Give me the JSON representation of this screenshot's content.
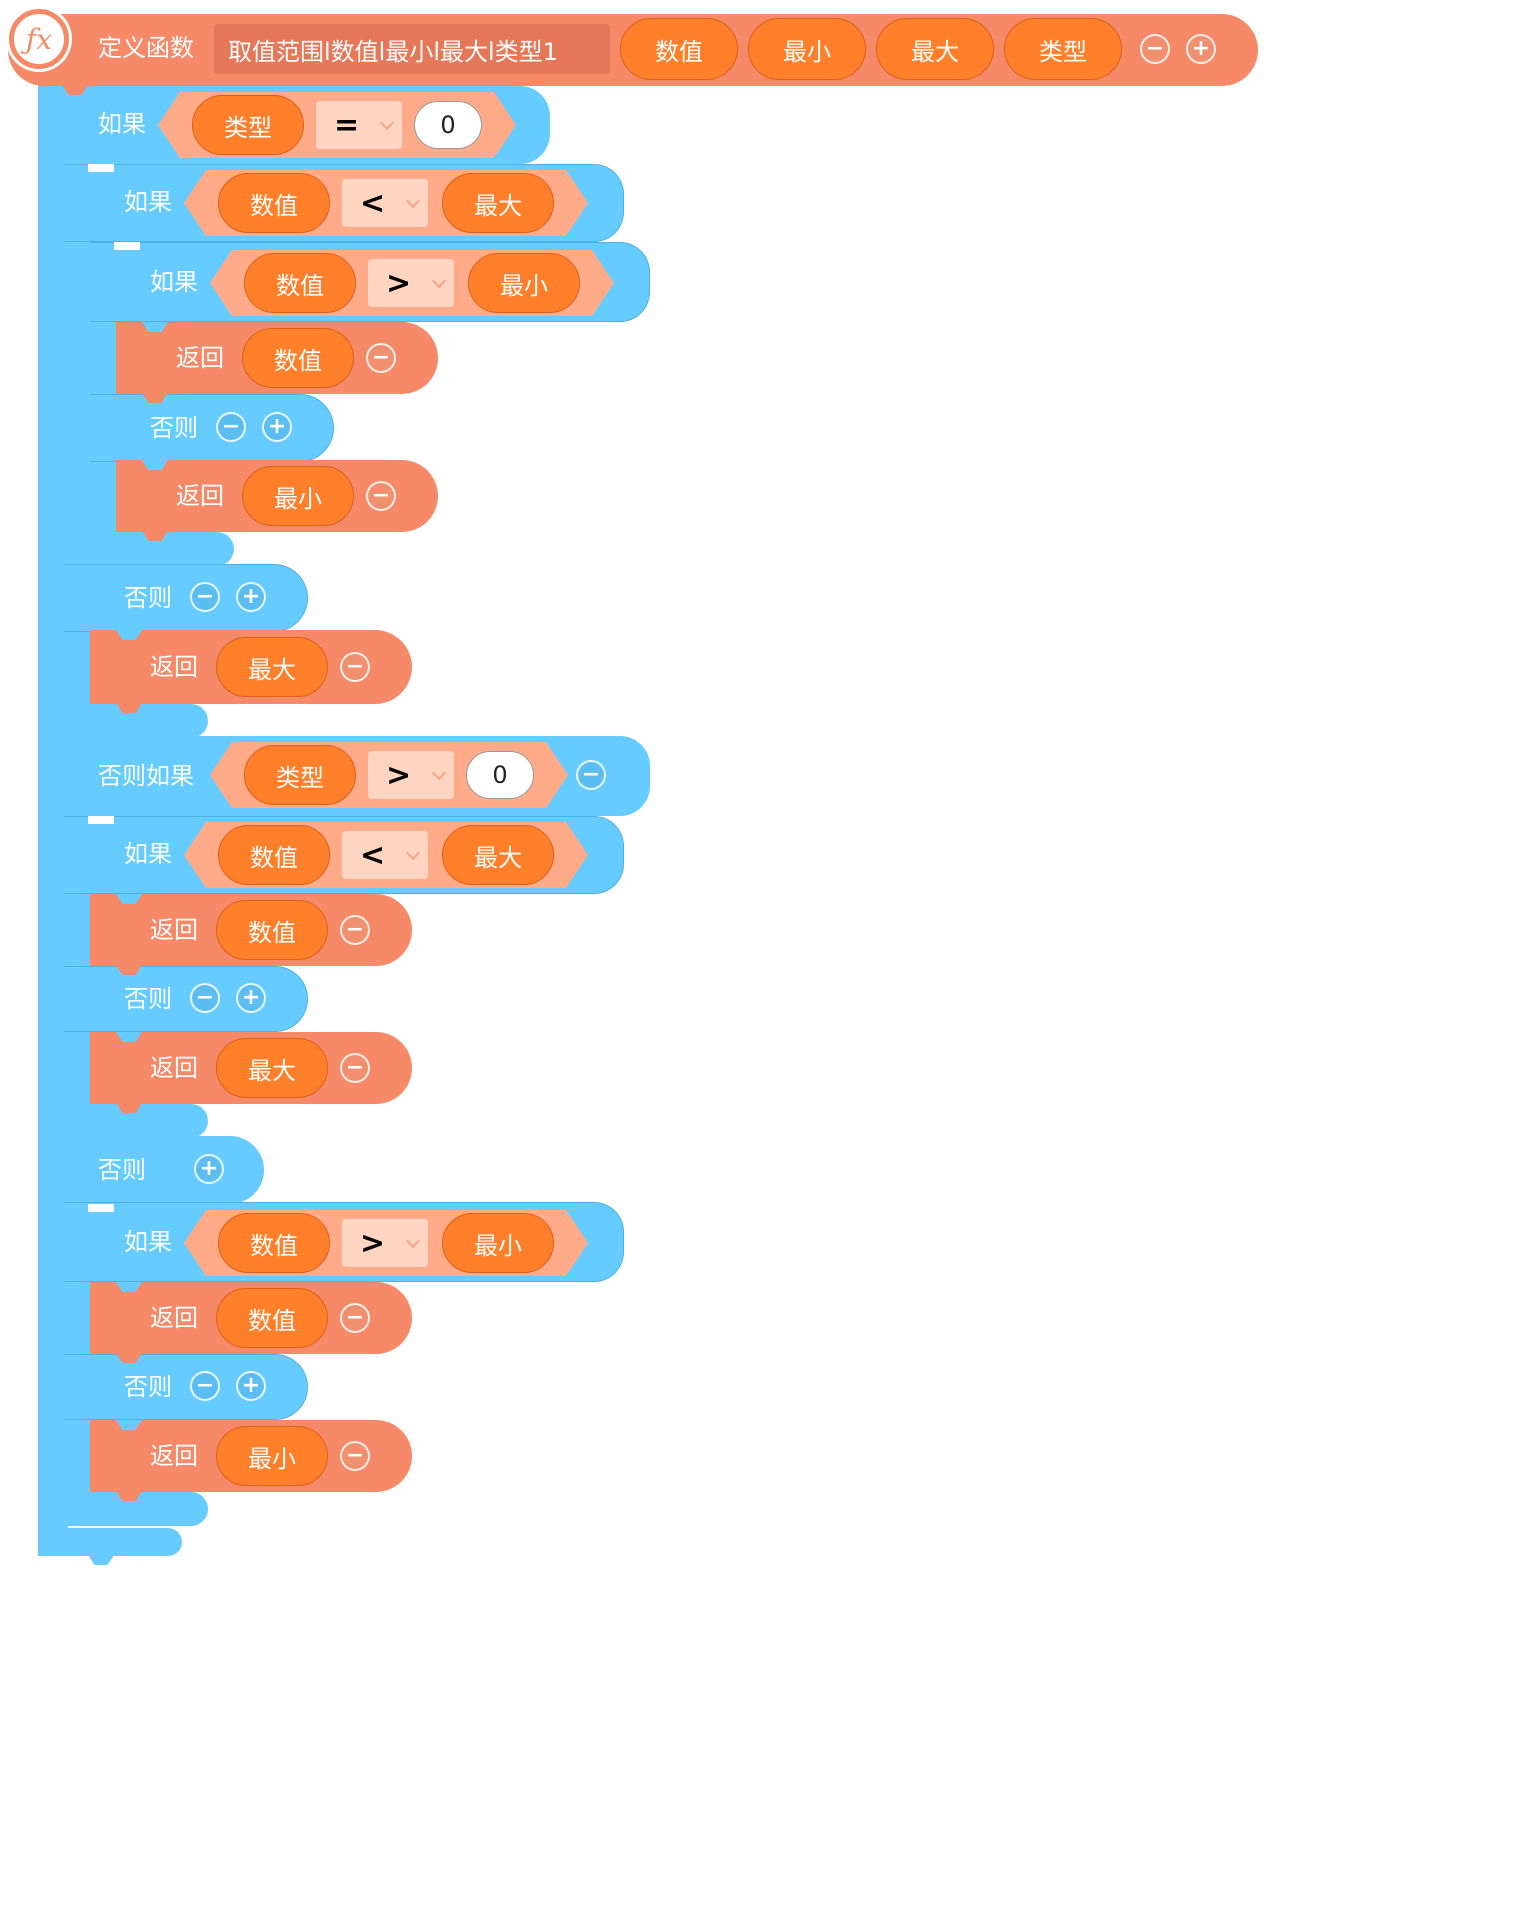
{
  "header": {
    "icon": "fx-icon",
    "define_label": "定义函数",
    "function_name": "取值范围l数值l最小l最大l类型1",
    "params": [
      "数值",
      "最小",
      "最大",
      "类型"
    ],
    "minus": "−",
    "plus": "+"
  },
  "keywords": {
    "if": "如果",
    "else": "否则",
    "elseif": "否则如果",
    "return": "返回"
  },
  "blocks": {
    "if1": {
      "left": "类型",
      "op": "=",
      "right": "0"
    },
    "if2": {
      "left": "数值",
      "op": "<",
      "right": "最大"
    },
    "if3": {
      "left": "数值",
      "op": ">",
      "right": "最小"
    },
    "ret1": "数值",
    "ret2": "最小",
    "ret3": "最大",
    "elseif1": {
      "left": "类型",
      "op": ">",
      "right": "0"
    },
    "if4": {
      "left": "数值",
      "op": "<",
      "right": "最大"
    },
    "ret4": "数值",
    "ret5": "最大",
    "if5": {
      "left": "数值",
      "op": ">",
      "right": "最小"
    },
    "ret6": "数值",
    "ret7": "最小"
  },
  "colors": {
    "control_blue": "#66ccff",
    "function_salmon": "#f58968",
    "variable_orange": "#ff7f2a",
    "condition_peach": "#ffab8a"
  }
}
